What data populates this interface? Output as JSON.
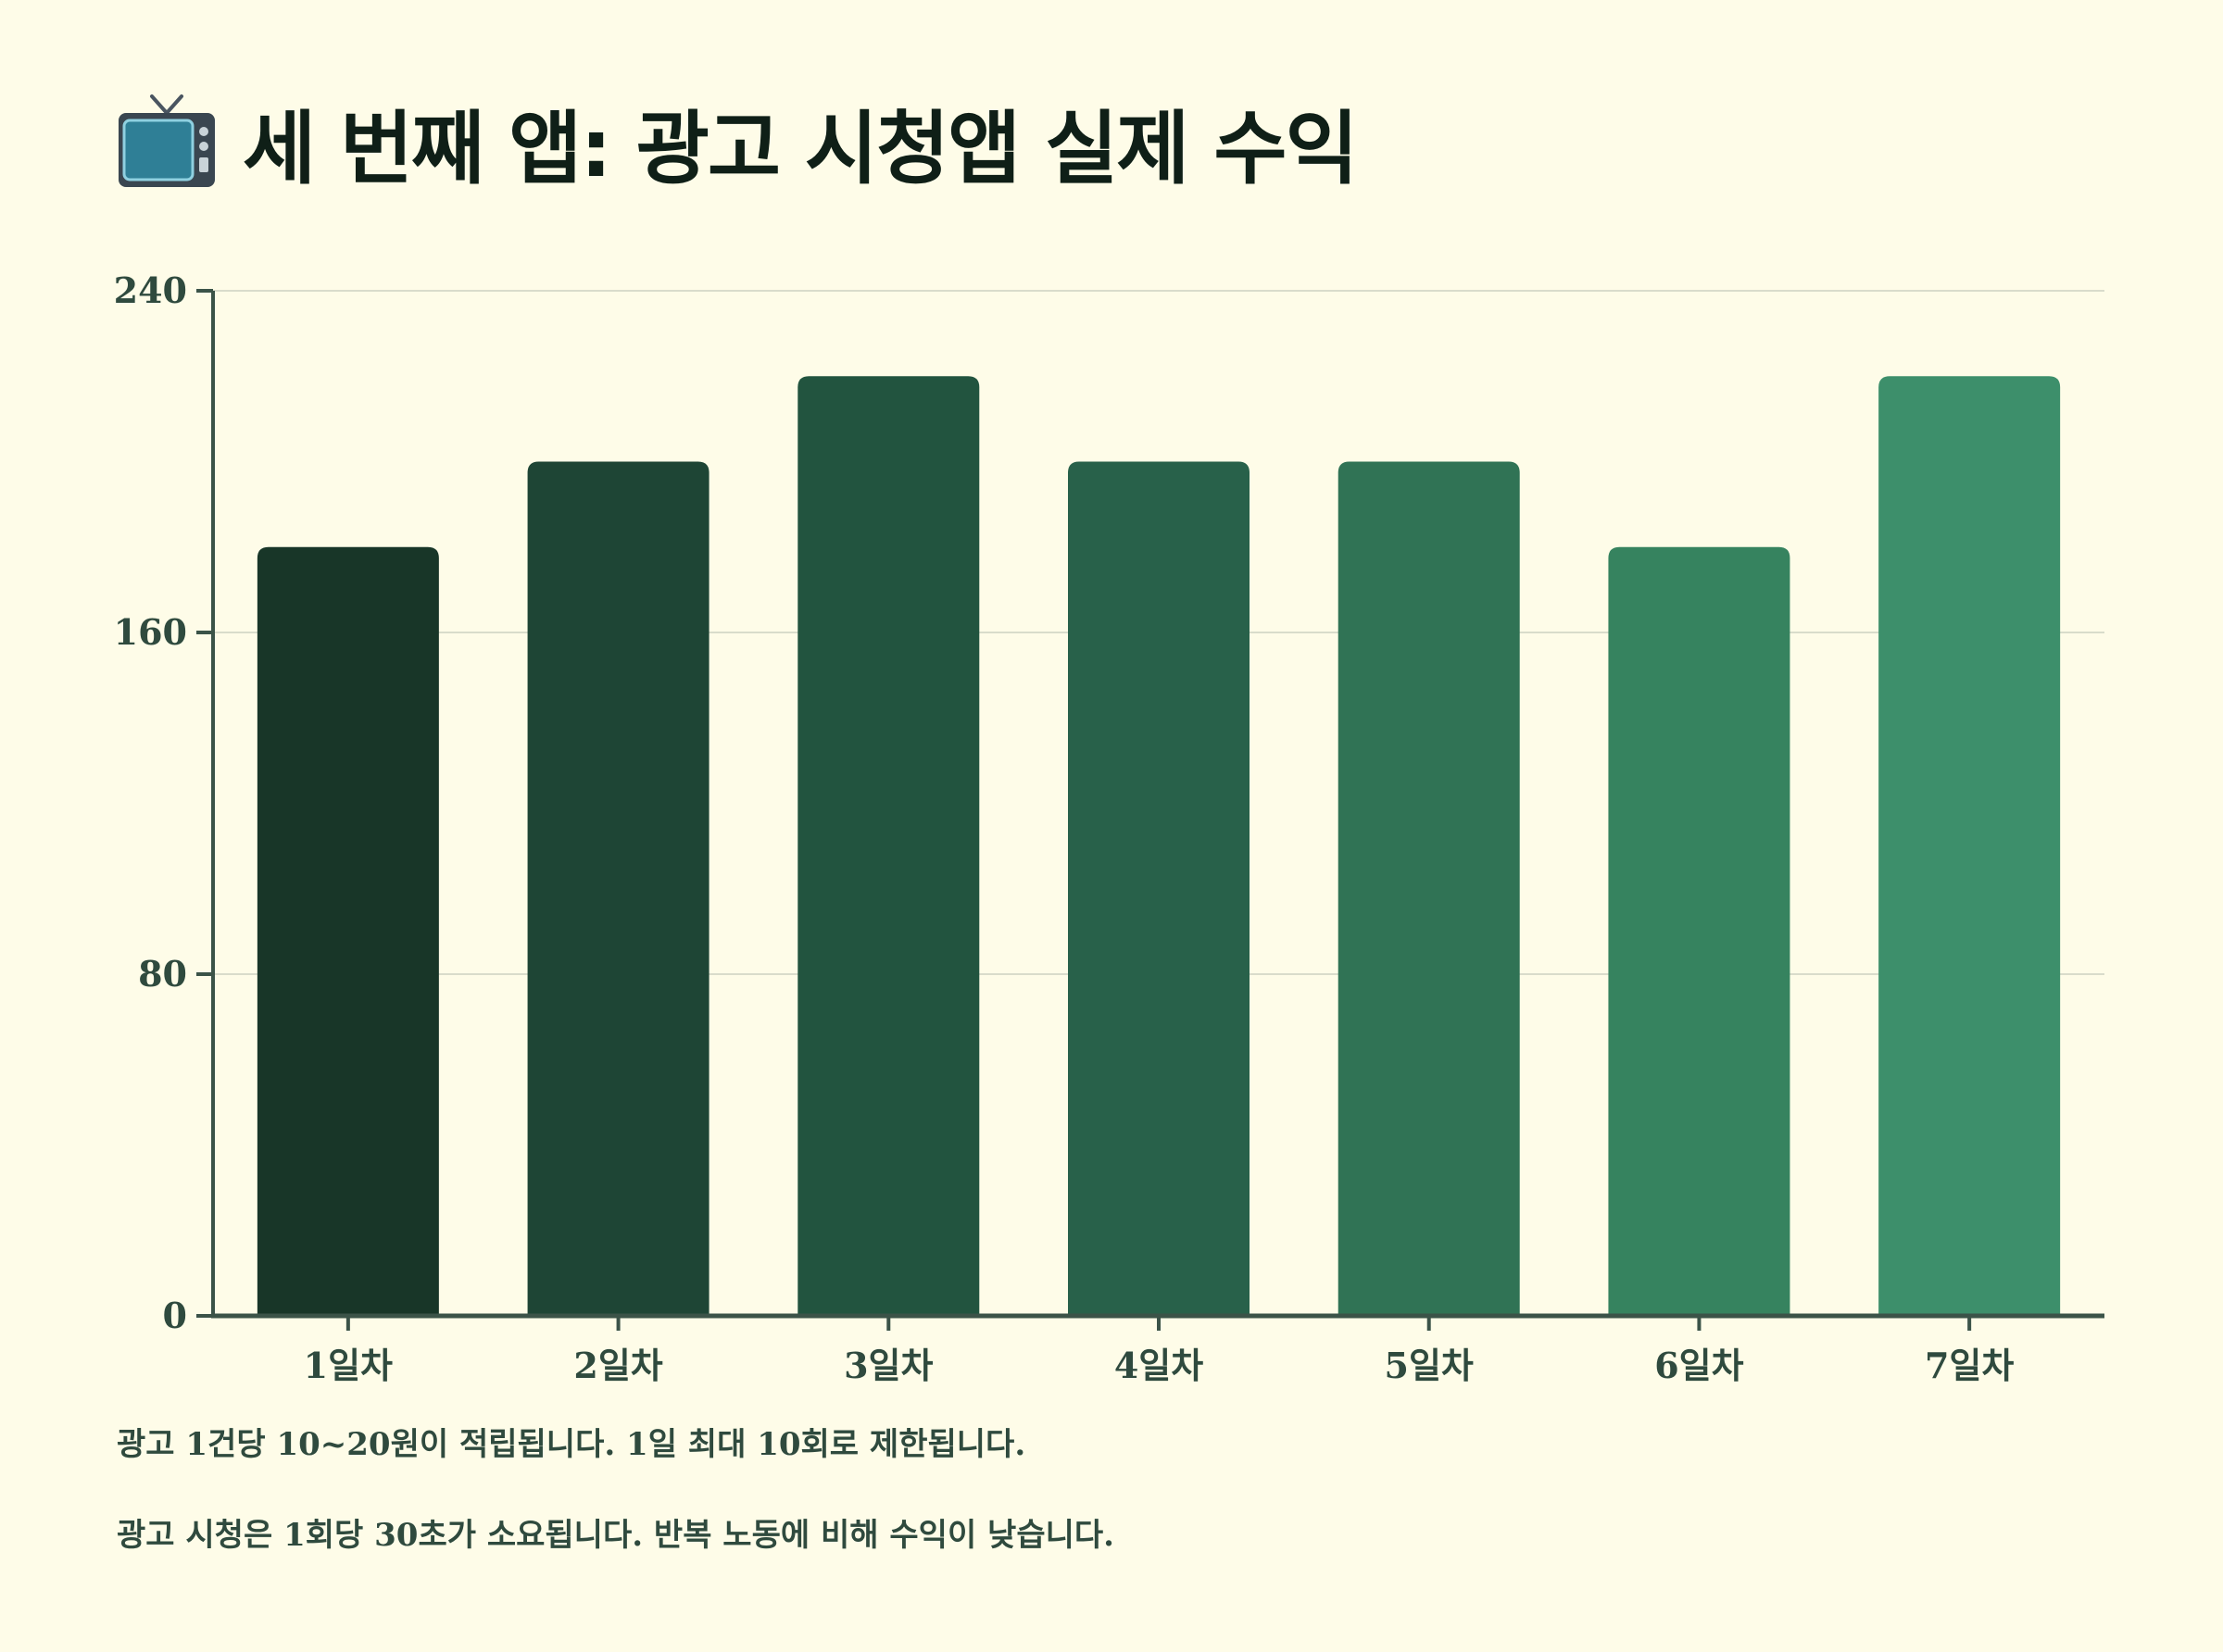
{
  "title": {
    "icon": "tv-icon",
    "text": "세 번째 앱: 광고 시청앱 실제 수익"
  },
  "chart_data": {
    "type": "bar",
    "categories": [
      "1일차",
      "2일차",
      "3일차",
      "4일차",
      "5일차",
      "6일차",
      "7일차"
    ],
    "values": [
      180,
      200,
      220,
      200,
      200,
      180,
      220
    ],
    "title": "",
    "xlabel": "",
    "ylabel": "",
    "ylim": [
      0,
      240
    ],
    "yticks": [
      0,
      80,
      160,
      240
    ],
    "grid": true,
    "legend": "none",
    "colors": [
      "#183628",
      "#1e4535",
      "#22543f",
      "#28614a",
      "#307355",
      "#36835f",
      "#3d8f6b"
    ]
  },
  "notes": [
    "광고 1건당 10~20원이 적립됩니다. 1일 최대 10회로 제한됩니다.",
    "광고 시청은 1회당 30초가 소요됩니다. 반복 노동에 비해 수익이 낮습니다."
  ],
  "colors": {
    "background": "#fefce8",
    "axis": "#3b5348",
    "grid": "#d9dccb",
    "text": "#2f4a3e"
  }
}
